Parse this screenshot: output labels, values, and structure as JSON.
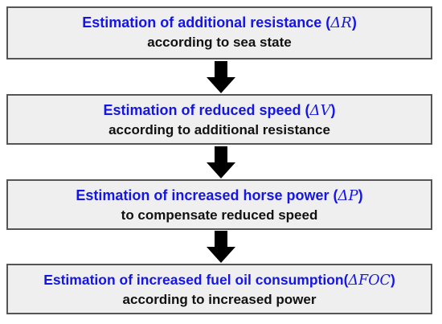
{
  "colors": {
    "title_blue": "#1515e6",
    "body_text": "#111111",
    "box_fill": "#efefef",
    "box_border": "#555555",
    "arrow": "#000000"
  },
  "steps": [
    {
      "title_text": "Estimation of additional resistance (",
      "symbol": "ΔR",
      "title_close": ")",
      "subtitle": "according to sea state"
    },
    {
      "title_text": "Estimation of reduced speed (",
      "symbol": "ΔV",
      "title_close": ")",
      "subtitle": "according to additional resistance"
    },
    {
      "title_text": "Estimation of increased horse power (",
      "symbol": "ΔP",
      "title_close": ")",
      "subtitle": "to compensate reduced speed"
    },
    {
      "title_text": "Estimation of increased fuel oil consumption(",
      "symbol": "ΔFOC",
      "title_close": ")",
      "subtitle": "according to increased power"
    }
  ],
  "arrows": [
    {
      "icon": "down-arrow-icon"
    },
    {
      "icon": "down-arrow-icon"
    },
    {
      "icon": "down-arrow-icon"
    }
  ]
}
